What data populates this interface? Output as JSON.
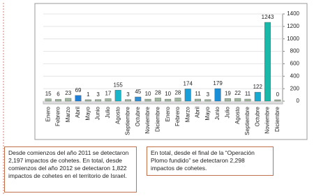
{
  "chart_data": {
    "type": "bar",
    "categories": [
      "Enero",
      "Febrero",
      "Marzo",
      "Abril",
      "Mayo",
      "Junio",
      "Julio",
      "Agosto",
      "Septiembre",
      "Octubre",
      "Noviembre",
      "Diciembre",
      "Enero",
      "Febrero",
      "Marzo",
      "Abril",
      "Mayo",
      "Junio",
      "Julio",
      "Agosto",
      "Septiembre",
      "Octubre",
      "Noviembre",
      "Diciembre"
    ],
    "values": [
      15,
      6,
      23,
      69,
      1,
      3,
      17,
      155,
      3,
      45,
      10,
      28,
      10,
      28,
      174,
      11,
      3,
      179,
      19,
      22,
      11,
      122,
      1243,
      0
    ],
    "colors": [
      "#9fb89f",
      "#9fb89f",
      "#9fb89f",
      "#1f7fd6",
      "#9fb89f",
      "#9fb89f",
      "#9fb89f",
      "#18b6c8",
      "#9fb89f",
      "#2f8fd0",
      "#9fb89f",
      "#9fb89f",
      "#9fb89f",
      "#9fb89f",
      "#1a9fd8",
      "#9fb89f",
      "#9fb89f",
      "#1a8fd8",
      "#9fb89f",
      "#9fb89f",
      "#9fb89f",
      "#1aa9cf",
      "#1ab8a8",
      "#9fb89f"
    ],
    "ylim": [
      0,
      1400
    ],
    "yticks": [
      0,
      200,
      400,
      600,
      800,
      1000,
      1200,
      1400
    ],
    "grid": true
  },
  "notes": [
    "Desde comienzos del año 2011 se detectaron 2,197 impactos de cohetes. En total, desde comienzos del año 2012 se detectaron 1,822 impactos de cohetes en el territorio de Israel.",
    "En total, desde el final de la “Operación Plomo fundido” se detectaron 2,298 impactos de cohetes."
  ]
}
